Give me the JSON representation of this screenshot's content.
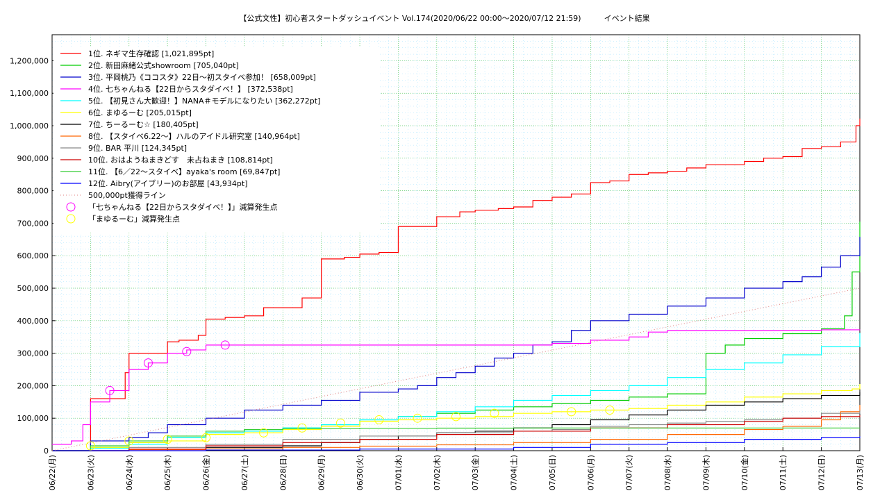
{
  "page": {
    "title": "【公式文性】初心者スタートダッシュイベント Vol.174(2020/06/22 00:00〜2020/07/12 21:59)　　　イベント結果"
  },
  "chart_data": {
    "type": "line",
    "title": "【公式文性】初心者スタートダッシュイベント Vol.174(2020/06/22 00:00〜2020/07/12 21:59)　　　イベント結果",
    "xlabel": "",
    "ylabel": "",
    "x_ticks": [
      "06/22(月)",
      "06/23(火)",
      "06/24(水)",
      "06/25(木)",
      "06/26(金)",
      "06/27(土)",
      "06/28(日)",
      "06/29(月)",
      "06/30(火)",
      "07/01(水)",
      "07/02(木)",
      "07/03(金)",
      "07/04(土)",
      "07/05(日)",
      "07/06(月)",
      "07/07(火)",
      "07/08(水)",
      "07/09(木)",
      "07/10(金)",
      "07/11(土)",
      "07/12(日)",
      "07/13(月)"
    ],
    "x_range_days": [
      0,
      21
    ],
    "ylim": [
      0,
      1280000
    ],
    "y_ticks": [
      "0",
      "100,000",
      "200,000",
      "300,000",
      "400,000",
      "500,000",
      "600,000",
      "700,000",
      "800,000",
      "900,000",
      "1,000,000",
      "1,100,000",
      "1,200,000"
    ],
    "grid": true,
    "legend_position": "top-left",
    "series": [
      {
        "name": "1位. ネギマ生存確認 [1,021,895pt]",
        "color": "#ff0000",
        "x": [
          0,
          0.8,
          1.0,
          1.2,
          1.5,
          1.9,
          2.0,
          2.2,
          2.5,
          2.9,
          3.0,
          3.3,
          3.8,
          4.0,
          4.5,
          5.0,
          5.5,
          6.0,
          6.5,
          6.9,
          7.0,
          7.6,
          8.0,
          8.5,
          9.0,
          9.5,
          10.0,
          10.6,
          11.0,
          11.6,
          12.0,
          12.5,
          13.0,
          13.5,
          14.0,
          14.5,
          15.0,
          15.5,
          16.0,
          16.5,
          17.0,
          17.5,
          18.0,
          18.5,
          19.0,
          19.5,
          20.0,
          20.5,
          20.9,
          21.0
        ],
        "y": [
          0,
          0,
          160000,
          160000,
          160000,
          240000,
          300000,
          300000,
          300000,
          300000,
          335000,
          340000,
          355000,
          405000,
          410000,
          415000,
          440000,
          440000,
          470000,
          470000,
          590000,
          595000,
          605000,
          610000,
          690000,
          690000,
          720000,
          735000,
          740000,
          745000,
          750000,
          770000,
          780000,
          790000,
          825000,
          830000,
          850000,
          855000,
          860000,
          870000,
          880000,
          880000,
          890000,
          900000,
          905000,
          930000,
          935000,
          950000,
          1000000,
          1021895
        ]
      },
      {
        "name": "2位. 新田麻緒公式showroom [705,040pt]",
        "color": "#00cc00",
        "x": [
          0,
          1,
          2,
          3,
          4,
          5,
          6,
          7,
          8,
          9,
          10,
          11,
          12,
          13,
          14,
          15,
          16,
          16.9,
          17,
          17.5,
          18,
          19,
          20,
          20.6,
          20.8,
          21
        ],
        "y": [
          0,
          10000,
          25000,
          40000,
          55000,
          65000,
          70000,
          80000,
          95000,
          105000,
          115000,
          125000,
          135000,
          145000,
          155000,
          165000,
          175000,
          175000,
          300000,
          325000,
          345000,
          360000,
          375000,
          415000,
          550000,
          705040
        ]
      },
      {
        "name": "3位. 平岡桃乃《ココスタ》22日〜初スタイベ参加！ [658,009pt]",
        "color": "#0000cc",
        "x": [
          0,
          1,
          2,
          2.5,
          3,
          4,
          5,
          6,
          7,
          8,
          9,
          9.5,
          10,
          10.5,
          11,
          11.5,
          12,
          12.5,
          13,
          13.5,
          14,
          15,
          16,
          17,
          18,
          19,
          19.5,
          20,
          20.5,
          21
        ],
        "y": [
          0,
          30000,
          40000,
          55000,
          80000,
          100000,
          125000,
          140000,
          155000,
          180000,
          190000,
          200000,
          225000,
          240000,
          260000,
          285000,
          300000,
          325000,
          335000,
          370000,
          400000,
          420000,
          445000,
          470000,
          500000,
          520000,
          535000,
          565000,
          600000,
          658009
        ]
      },
      {
        "name": "4位. 七ちゃんねる【22日からスタダイベ！】 [372,538pt]",
        "color": "#ff00ff",
        "x": [
          0,
          0.5,
          0.8,
          1.0,
          1.5,
          2.0,
          2.5,
          3.0,
          3.5,
          4.0,
          5.0,
          8.0,
          12.0,
          13.0,
          14.0,
          15.0,
          15.5,
          16.0,
          17.0,
          18.0,
          19.0,
          20.0,
          21.0
        ],
        "y": [
          20000,
          30000,
          80000,
          150000,
          185000,
          250000,
          270000,
          300000,
          310000,
          325000,
          325000,
          325000,
          325000,
          330000,
          340000,
          350000,
          365000,
          370000,
          370000,
          370000,
          370000,
          372000,
          372538
        ]
      },
      {
        "name": "5位. 【初見さん大歓迎！】NANA＃モデルになりたい [362,272pt]",
        "color": "#00ffff",
        "x": [
          0,
          1,
          2,
          3,
          4,
          5,
          6,
          7,
          8,
          9,
          10,
          11,
          12,
          13,
          14,
          15,
          16,
          17,
          18,
          19,
          20,
          21
        ],
        "y": [
          0,
          8000,
          20000,
          40000,
          55000,
          60000,
          70000,
          80000,
          95000,
          105000,
          120000,
          135000,
          155000,
          170000,
          185000,
          200000,
          225000,
          250000,
          270000,
          295000,
          320000,
          362272
        ]
      },
      {
        "name": "6位. まゆるーむ [205,015pt]",
        "color": "#ffff00",
        "x": [
          0,
          1,
          2,
          3,
          4,
          5,
          6,
          7,
          8,
          9,
          10,
          11,
          12,
          13,
          14,
          15,
          16,
          17,
          18,
          19,
          20,
          20.8,
          21
        ],
        "y": [
          0,
          10000,
          25000,
          30000,
          50000,
          55000,
          65000,
          75000,
          90000,
          95000,
          100000,
          105000,
          115000,
          120000,
          125000,
          130000,
          140000,
          150000,
          165000,
          175000,
          185000,
          190000,
          205015
        ]
      },
      {
        "name": "7位. ちーるーむ☆ [180,405pt]",
        "color": "#000000",
        "x": [
          0,
          2,
          4,
          6,
          7,
          8,
          9,
          10,
          11,
          12,
          13,
          14,
          15,
          16,
          17,
          18,
          19,
          20,
          21
        ],
        "y": [
          0,
          5000,
          10000,
          15000,
          25000,
          35000,
          45000,
          55000,
          60000,
          70000,
          80000,
          95000,
          110000,
          125000,
          140000,
          150000,
          160000,
          170000,
          180405
        ]
      },
      {
        "name": "8位. 【スタイベ6.22〜】ハルのアイドル研究室 [140,964pt]",
        "color": "#ff6600",
        "x": [
          0,
          2,
          4,
          6,
          8,
          10,
          12,
          14,
          16,
          18,
          19,
          20,
          20.5,
          21
        ],
        "y": [
          0,
          3000,
          6000,
          10000,
          14000,
          18000,
          25000,
          35000,
          50000,
          65000,
          75000,
          95000,
          120000,
          140964
        ]
      },
      {
        "name": "9位. BAR 平川 [124,345pt]",
        "color": "#888888",
        "x": [
          0,
          2,
          4,
          6,
          8,
          10,
          12,
          13,
          14,
          15,
          16,
          17,
          18,
          19,
          20,
          21
        ],
        "y": [
          0,
          10000,
          20000,
          35000,
          45000,
          55000,
          60000,
          65000,
          75000,
          80000,
          85000,
          90000,
          95000,
          100000,
          115000,
          124345
        ]
      },
      {
        "name": "10位. おはようねまきどす　未占ねまき [108,814pt]",
        "color": "#cc0000",
        "x": [
          0,
          2,
          4,
          6,
          8,
          10,
          12,
          14,
          16,
          18,
          19,
          20,
          21
        ],
        "y": [
          0,
          5000,
          15000,
          25000,
          35000,
          50000,
          60000,
          70000,
          80000,
          90000,
          100000,
          105000,
          108814
        ]
      },
      {
        "name": "11位. 【6／22〜スタイベ】ayaka's room [69,847pt]",
        "color": "#33cc33",
        "x": [
          0,
          1,
          2,
          3,
          4,
          5,
          6,
          8,
          10,
          12,
          14,
          16,
          18,
          21
        ],
        "y": [
          0,
          15000,
          30000,
          45000,
          60000,
          65000,
          68000,
          69000,
          69500,
          69800,
          69847,
          69847,
          69847,
          69847
        ]
      },
      {
        "name": "12位. Aibry(アイブリー)のお部屋 [43,934pt]",
        "color": "#0000ff",
        "x": [
          0,
          4,
          8,
          12,
          14,
          16,
          18,
          20,
          21
        ],
        "y": [
          0,
          2000,
          5000,
          10000,
          20000,
          25000,
          35000,
          40000,
          43934
        ]
      },
      {
        "name": "500,000pt獲得ライン",
        "color": "#e08080",
        "dotted": true,
        "x": [
          0,
          21
        ],
        "y": [
          0,
          500000
        ]
      }
    ],
    "markers": [
      {
        "name": "「七ちゃんねる【22日からスタダイベ！】」減算発生点",
        "color": "#ff00ff",
        "x": [
          1.5,
          2.5,
          3.5,
          4.5
        ],
        "y": [
          185000,
          270000,
          305000,
          325000
        ]
      },
      {
        "name": "「まゆるーむ」減算発生点",
        "color": "#ffff00",
        "x": [
          1.0,
          2.0,
          3.0,
          4.0,
          5.5,
          6.5,
          7.5,
          8.5,
          9.5,
          10.5,
          11.5,
          13.5,
          14.5
        ],
        "y": [
          15000,
          30000,
          35000,
          40000,
          55000,
          70000,
          85000,
          95000,
          100000,
          105000,
          115000,
          120000,
          125000
        ]
      }
    ]
  }
}
